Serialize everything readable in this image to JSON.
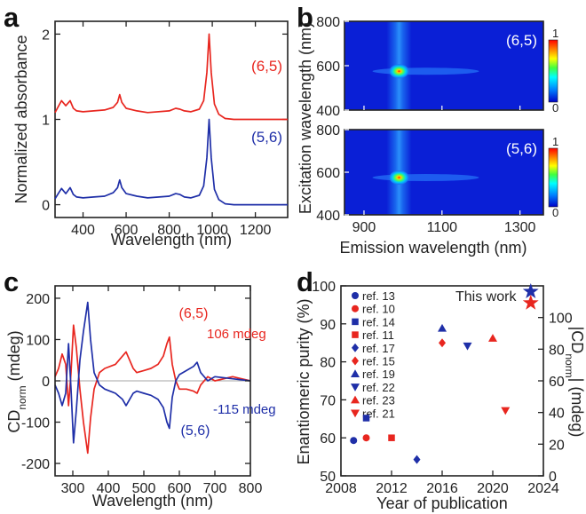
{
  "colors": {
    "red": "#e8261f",
    "blue": "#1f2fa8",
    "axis": "#222222",
    "heat_bg": "#0a1fd6"
  },
  "chart_data": [
    {
      "panel": "a",
      "type": "line",
      "xlabel": "Wavelength (nm)",
      "ylabel": "Normalized absorbance",
      "xlim": [
        270,
        1350
      ],
      "ylim": [
        -0.15,
        2.15
      ],
      "xticks": [
        400,
        600,
        800,
        1000,
        1200
      ],
      "yticks": [
        0,
        1,
        2
      ],
      "series": [
        {
          "name": "(6,5)",
          "color": "#e8261f",
          "x": [
            270,
            285,
            300,
            320,
            340,
            355,
            370,
            400,
            450,
            500,
            540,
            560,
            570,
            580,
            600,
            650,
            700,
            800,
            830,
            850,
            870,
            900,
            940,
            960,
            975,
            985,
            995,
            1010,
            1030,
            1060,
            1100,
            1200,
            1350
          ],
          "y": [
            1.08,
            1.15,
            1.22,
            1.16,
            1.22,
            1.13,
            1.1,
            1.09,
            1.1,
            1.11,
            1.14,
            1.2,
            1.29,
            1.2,
            1.13,
            1.1,
            1.08,
            1.1,
            1.13,
            1.12,
            1.1,
            1.09,
            1.12,
            1.22,
            1.55,
            2.0,
            1.55,
            1.18,
            1.06,
            1.01,
            1.0,
            1.0,
            1.0
          ]
        },
        {
          "name": "(5,6)",
          "color": "#1f2fa8",
          "x": [
            270,
            285,
            300,
            320,
            340,
            355,
            370,
            400,
            450,
            500,
            540,
            560,
            570,
            580,
            600,
            650,
            700,
            800,
            830,
            850,
            870,
            900,
            940,
            960,
            975,
            985,
            995,
            1010,
            1030,
            1060,
            1100,
            1200,
            1350
          ],
          "y": [
            0.07,
            0.13,
            0.19,
            0.13,
            0.2,
            0.12,
            0.09,
            0.08,
            0.09,
            0.1,
            0.14,
            0.2,
            0.29,
            0.2,
            0.13,
            0.1,
            0.08,
            0.1,
            0.13,
            0.12,
            0.09,
            0.08,
            0.11,
            0.22,
            0.55,
            1.0,
            0.55,
            0.18,
            0.06,
            0.01,
            0.0,
            0.0,
            0.0
          ]
        }
      ]
    },
    {
      "panel": "b",
      "type": "heatmap",
      "xlabel": "Emission wavelength (nm)",
      "ylabel": "Excitation wavelength (nm)",
      "xlim": [
        850,
        1360
      ],
      "ylim": [
        400,
        800
      ],
      "xticks": [
        900,
        1100,
        1300
      ],
      "yticks": [
        400,
        600,
        800
      ],
      "colorbar_ticks": [
        "1",
        "0"
      ],
      "maps": [
        {
          "name": "(6,5)",
          "peak_x": 990,
          "peak_y": 575
        },
        {
          "name": "(5,6)",
          "peak_x": 990,
          "peak_y": 575
        }
      ]
    },
    {
      "panel": "c",
      "type": "line",
      "xlabel": "Wavelength (nm)",
      "ylabel": "CD",
      "ylabel_sub": "norm",
      "ylabel_unit": " (mdeg)",
      "xlim": [
        250,
        800
      ],
      "ylim": [
        -230,
        230
      ],
      "xticks": [
        300,
        400,
        500,
        600,
        700,
        800
      ],
      "yticks": [
        -200,
        -100,
        0,
        100,
        200
      ],
      "annotations": {
        "red_label": "(6,5)",
        "red_value": "106 mdeg",
        "blue_label": "(5,6)",
        "blue_value": "-115 mdeg"
      },
      "series": [
        {
          "name": "(6,5)",
          "color": "#e8261f",
          "x": [
            250,
            260,
            270,
            280,
            288,
            295,
            302,
            310,
            320,
            330,
            342,
            350,
            360,
            375,
            390,
            420,
            440,
            450,
            460,
            470,
            480,
            500,
            520,
            540,
            555,
            565,
            572,
            580,
            590,
            600,
            620,
            640,
            650,
            660,
            680,
            700,
            750,
            800
          ],
          "y": [
            10,
            30,
            65,
            40,
            -60,
            20,
            135,
            80,
            -20,
            -100,
            -175,
            -90,
            -20,
            20,
            30,
            40,
            60,
            70,
            50,
            30,
            20,
            25,
            30,
            40,
            60,
            90,
            106,
            40,
            0,
            -20,
            -20,
            -25,
            -30,
            -10,
            10,
            0,
            10,
            0
          ]
        },
        {
          "name": "(5,6)",
          "color": "#1f2fa8",
          "x": [
            250,
            260,
            270,
            280,
            288,
            295,
            302,
            310,
            320,
            330,
            342,
            350,
            360,
            375,
            390,
            420,
            440,
            450,
            460,
            470,
            480,
            500,
            520,
            540,
            555,
            565,
            572,
            580,
            590,
            600,
            620,
            640,
            650,
            660,
            680,
            700,
            750,
            800
          ],
          "y": [
            -10,
            -30,
            -60,
            -30,
            90,
            -20,
            -150,
            -70,
            50,
            120,
            190,
            100,
            20,
            -10,
            -20,
            -30,
            -45,
            -60,
            -45,
            -30,
            -25,
            -30,
            -35,
            -45,
            -65,
            -100,
            -115,
            -40,
            0,
            15,
            25,
            35,
            45,
            20,
            0,
            10,
            5,
            0
          ]
        }
      ]
    },
    {
      "panel": "d",
      "type": "scatter",
      "xlabel": "Year of publication",
      "ylabel": "Enantiomeric purity (%)",
      "y2label": "|CD",
      "y2label_sub": "norm",
      "y2label_unit": "| (mdeg)",
      "xlim": [
        2008,
        2024
      ],
      "ylim": [
        50,
        100
      ],
      "y2lim": [
        0,
        120
      ],
      "xticks": [
        2008,
        2012,
        2016,
        2020,
        2024
      ],
      "yticks": [
        50,
        60,
        70,
        80,
        90,
        100
      ],
      "y2ticks": [
        0,
        20,
        40,
        60,
        80,
        100
      ],
      "this_work_label": "This work",
      "legend": [
        {
          "label": "ref. 13",
          "marker": "circle",
          "color": "#1f2fa8"
        },
        {
          "label": "ref. 10",
          "marker": "circle",
          "color": "#e8261f"
        },
        {
          "label": "ref. 14",
          "marker": "square",
          "color": "#1f2fa8"
        },
        {
          "label": "ref. 11",
          "marker": "square",
          "color": "#e8261f"
        },
        {
          "label": "ref. 17",
          "marker": "diamond",
          "color": "#1f2fa8"
        },
        {
          "label": "ref. 15",
          "marker": "diamond",
          "color": "#e8261f"
        },
        {
          "label": "ref. 19",
          "marker": "triangle-up",
          "color": "#1f2fa8"
        },
        {
          "label": "ref. 22",
          "marker": "triangle-down",
          "color": "#1f2fa8"
        },
        {
          "label": "ref. 23",
          "marker": "triangle-up",
          "color": "#e8261f"
        },
        {
          "label": "ref. 21",
          "marker": "triangle-down",
          "color": "#e8261f"
        }
      ],
      "points": [
        {
          "ref": "ref. 13",
          "x": 2009,
          "y": 59.3,
          "marker": "circle",
          "color": "#1f2fa8"
        },
        {
          "ref": "ref. 10",
          "x": 2010,
          "y": 60,
          "marker": "circle",
          "color": "#e8261f"
        },
        {
          "ref": "ref. 14",
          "x": 2010,
          "y": 65.2,
          "marker": "square",
          "color": "#1f2fa8"
        },
        {
          "ref": "ref. 11",
          "x": 2012,
          "y": 60,
          "marker": "square",
          "color": "#e8261f"
        },
        {
          "ref": "ref. 17",
          "x": 2014,
          "y": 54.3,
          "marker": "diamond",
          "color": "#1f2fa8"
        },
        {
          "ref": "ref. 15",
          "x": 2016,
          "y": 85,
          "marker": "diamond",
          "color": "#e8261f"
        },
        {
          "ref": "ref. 19",
          "x": 2016,
          "y": 88.8,
          "marker": "triangle-up",
          "color": "#1f2fa8"
        },
        {
          "ref": "ref. 22",
          "x": 2018,
          "y": 84.2,
          "marker": "triangle-down",
          "color": "#1f2fa8"
        },
        {
          "ref": "ref. 23",
          "x": 2020,
          "y": 86.2,
          "marker": "triangle-up",
          "color": "#e8261f"
        },
        {
          "ref": "ref. 21",
          "x": 2021,
          "y": 67.2,
          "marker": "triangle-down",
          "color": "#e8261f"
        },
        {
          "ref": "This work",
          "x": 2023,
          "y": 98.5,
          "marker": "star",
          "color": "#1f2fa8"
        },
        {
          "ref": "This work",
          "x": 2023,
          "y": 95.5,
          "marker": "star",
          "color": "#e8261f"
        }
      ]
    }
  ],
  "panel_letters": [
    "a",
    "b",
    "c",
    "d"
  ]
}
